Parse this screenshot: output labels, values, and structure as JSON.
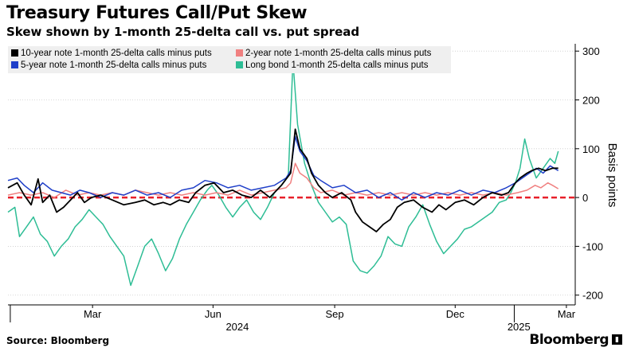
{
  "title": "Treasury Futures Call/Put Skew",
  "subtitle": "Skew shown by 1-month 25-delta call vs. put spread",
  "source": "Source: Bloomberg",
  "brand": "Bloomberg",
  "brand_icon": "bloomberg-terminal-icon",
  "colors": {
    "ten_year": "#000000",
    "two_year": "#f08080",
    "five_year": "#1f3fc9",
    "long_bond": "#2ebd95",
    "zero_line": "#e8202a",
    "grid": "#cccccc"
  },
  "chart_data": {
    "type": "line",
    "title": "Treasury Futures Call/Put Skew",
    "subtitle": "Skew shown by 1-month 25-delta call vs. put spread",
    "xlabel": "",
    "ylabel": "Basis points",
    "ylim": [
      -220,
      315
    ],
    "yticks": [
      300,
      200,
      100,
      0,
      -100,
      -200
    ],
    "xlim": [
      0,
      480
    ],
    "x_unit": "trading day index (Feb 2024 – Mar 2025)",
    "month_ticks": [
      {
        "x": 73,
        "label": "Mar"
      },
      {
        "x": 177,
        "label": "Jun"
      },
      {
        "x": 282,
        "label": "Sep"
      },
      {
        "x": 386,
        "label": "Dec"
      },
      {
        "x": 482,
        "label": "Mar"
      }
    ],
    "year_labels": [
      {
        "x": 198,
        "label": "2024"
      },
      {
        "x": 441,
        "label": "2025"
      }
    ],
    "year_separators": [
      2,
      437
    ],
    "zero_line": 0,
    "legend_position": "top-left",
    "series": [
      {
        "name": "10-year note 1-month 25-delta calls minus puts",
        "color_key": "ten_year",
        "points": [
          [
            0,
            20
          ],
          [
            8,
            30
          ],
          [
            14,
            5
          ],
          [
            20,
            -15
          ],
          [
            26,
            38
          ],
          [
            30,
            -10
          ],
          [
            36,
            5
          ],
          [
            42,
            -30
          ],
          [
            48,
            -20
          ],
          [
            54,
            -5
          ],
          [
            60,
            10
          ],
          [
            66,
            -10
          ],
          [
            72,
            0
          ],
          [
            80,
            5
          ],
          [
            90,
            -5
          ],
          [
            100,
            -15
          ],
          [
            110,
            -10
          ],
          [
            118,
            -5
          ],
          [
            126,
            -15
          ],
          [
            134,
            -10
          ],
          [
            140,
            -15
          ],
          [
            148,
            -5
          ],
          [
            156,
            -10
          ],
          [
            162,
            10
          ],
          [
            170,
            25
          ],
          [
            178,
            30
          ],
          [
            186,
            10
          ],
          [
            194,
            15
          ],
          [
            202,
            5
          ],
          [
            210,
            0
          ],
          [
            218,
            15
          ],
          [
            226,
            0
          ],
          [
            236,
            25
          ],
          [
            244,
            50
          ],
          [
            248,
            140
          ],
          [
            252,
            100
          ],
          [
            258,
            80
          ],
          [
            262,
            50
          ],
          [
            268,
            25
          ],
          [
            274,
            10
          ],
          [
            280,
            0
          ],
          [
            288,
            10
          ],
          [
            296,
            -5
          ],
          [
            300,
            -30
          ],
          [
            306,
            -50
          ],
          [
            312,
            -60
          ],
          [
            318,
            -70
          ],
          [
            324,
            -55
          ],
          [
            330,
            -45
          ],
          [
            336,
            -20
          ],
          [
            342,
            -10
          ],
          [
            350,
            -5
          ],
          [
            358,
            -20
          ],
          [
            366,
            -30
          ],
          [
            372,
            -15
          ],
          [
            378,
            -25
          ],
          [
            386,
            -10
          ],
          [
            394,
            -5
          ],
          [
            402,
            -15
          ],
          [
            410,
            0
          ],
          [
            418,
            10
          ],
          [
            426,
            5
          ],
          [
            432,
            10
          ],
          [
            438,
            30
          ],
          [
            442,
            40
          ],
          [
            448,
            50
          ],
          [
            452,
            55
          ],
          [
            458,
            60
          ],
          [
            464,
            55
          ],
          [
            470,
            60
          ],
          [
            475,
            60
          ]
        ]
      },
      {
        "name": "2-year note 1-month 25-delta calls minus puts",
        "color_key": "two_year",
        "points": [
          [
            0,
            5
          ],
          [
            10,
            10
          ],
          [
            20,
            5
          ],
          [
            30,
            10
          ],
          [
            40,
            0
          ],
          [
            50,
            15
          ],
          [
            60,
            5
          ],
          [
            70,
            10
          ],
          [
            80,
            5
          ],
          [
            90,
            10
          ],
          [
            100,
            5
          ],
          [
            110,
            15
          ],
          [
            120,
            10
          ],
          [
            130,
            5
          ],
          [
            140,
            10
          ],
          [
            150,
            5
          ],
          [
            160,
            10
          ],
          [
            170,
            5
          ],
          [
            180,
            10
          ],
          [
            190,
            5
          ],
          [
            200,
            15
          ],
          [
            210,
            5
          ],
          [
            220,
            10
          ],
          [
            230,
            15
          ],
          [
            240,
            20
          ],
          [
            244,
            30
          ],
          [
            248,
            70
          ],
          [
            252,
            50
          ],
          [
            258,
            40
          ],
          [
            264,
            20
          ],
          [
            270,
            10
          ],
          [
            280,
            15
          ],
          [
            290,
            5
          ],
          [
            300,
            10
          ],
          [
            310,
            5
          ],
          [
            320,
            10
          ],
          [
            330,
            5
          ],
          [
            340,
            10
          ],
          [
            350,
            5
          ],
          [
            360,
            10
          ],
          [
            370,
            5
          ],
          [
            380,
            10
          ],
          [
            390,
            5
          ],
          [
            400,
            10
          ],
          [
            410,
            5
          ],
          [
            420,
            10
          ],
          [
            430,
            5
          ],
          [
            440,
            10
          ],
          [
            448,
            15
          ],
          [
            455,
            25
          ],
          [
            460,
            20
          ],
          [
            466,
            30
          ],
          [
            470,
            25
          ],
          [
            475,
            18
          ]
        ]
      },
      {
        "name": "5-year note 1-month 25-delta calls minus puts",
        "color_key": "five_year",
        "points": [
          [
            0,
            35
          ],
          [
            8,
            40
          ],
          [
            14,
            25
          ],
          [
            22,
            10
          ],
          [
            30,
            30
          ],
          [
            38,
            15
          ],
          [
            46,
            10
          ],
          [
            54,
            5
          ],
          [
            62,
            15
          ],
          [
            70,
            10
          ],
          [
            80,
            0
          ],
          [
            90,
            10
          ],
          [
            100,
            5
          ],
          [
            110,
            15
          ],
          [
            120,
            5
          ],
          [
            130,
            10
          ],
          [
            140,
            0
          ],
          [
            150,
            15
          ],
          [
            160,
            20
          ],
          [
            170,
            35
          ],
          [
            180,
            30
          ],
          [
            190,
            20
          ],
          [
            200,
            25
          ],
          [
            210,
            15
          ],
          [
            220,
            20
          ],
          [
            230,
            25
          ],
          [
            240,
            40
          ],
          [
            244,
            55
          ],
          [
            248,
            125
          ],
          [
            252,
            95
          ],
          [
            258,
            75
          ],
          [
            264,
            45
          ],
          [
            270,
            35
          ],
          [
            280,
            20
          ],
          [
            290,
            25
          ],
          [
            300,
            10
          ],
          [
            310,
            15
          ],
          [
            320,
            0
          ],
          [
            330,
            10
          ],
          [
            340,
            -5
          ],
          [
            350,
            10
          ],
          [
            360,
            0
          ],
          [
            370,
            10
          ],
          [
            380,
            5
          ],
          [
            390,
            15
          ],
          [
            400,
            5
          ],
          [
            410,
            15
          ],
          [
            420,
            10
          ],
          [
            430,
            20
          ],
          [
            438,
            30
          ],
          [
            444,
            40
          ],
          [
            450,
            50
          ],
          [
            456,
            60
          ],
          [
            462,
            50
          ],
          [
            468,
            65
          ],
          [
            475,
            55
          ]
        ]
      },
      {
        "name": "Long bond 1-month 25-delta calls minus puts",
        "color_key": "long_bond",
        "points": [
          [
            0,
            -30
          ],
          [
            6,
            -20
          ],
          [
            10,
            -80
          ],
          [
            16,
            -60
          ],
          [
            22,
            -40
          ],
          [
            28,
            -75
          ],
          [
            34,
            -90
          ],
          [
            40,
            -120
          ],
          [
            46,
            -100
          ],
          [
            52,
            -85
          ],
          [
            58,
            -60
          ],
          [
            64,
            -45
          ],
          [
            70,
            -25
          ],
          [
            76,
            -40
          ],
          [
            82,
            -55
          ],
          [
            88,
            -80
          ],
          [
            94,
            -100
          ],
          [
            100,
            -120
          ],
          [
            106,
            -180
          ],
          [
            112,
            -140
          ],
          [
            118,
            -100
          ],
          [
            124,
            -85
          ],
          [
            130,
            -115
          ],
          [
            136,
            -150
          ],
          [
            142,
            -125
          ],
          [
            148,
            -85
          ],
          [
            154,
            -55
          ],
          [
            160,
            -30
          ],
          [
            166,
            -5
          ],
          [
            172,
            15
          ],
          [
            176,
            25
          ],
          [
            182,
            5
          ],
          [
            188,
            -20
          ],
          [
            194,
            -40
          ],
          [
            200,
            -20
          ],
          [
            206,
            -5
          ],
          [
            212,
            -30
          ],
          [
            218,
            -45
          ],
          [
            224,
            -20
          ],
          [
            230,
            10
          ],
          [
            236,
            25
          ],
          [
            242,
            45
          ],
          [
            246,
            280
          ],
          [
            250,
            150
          ],
          [
            256,
            70
          ],
          [
            262,
            25
          ],
          [
            268,
            -10
          ],
          [
            274,
            -30
          ],
          [
            280,
            -50
          ],
          [
            286,
            -40
          ],
          [
            292,
            -55
          ],
          [
            298,
            -130
          ],
          [
            304,
            -150
          ],
          [
            310,
            -155
          ],
          [
            316,
            -140
          ],
          [
            322,
            -120
          ],
          [
            328,
            -80
          ],
          [
            334,
            -95
          ],
          [
            340,
            -100
          ],
          [
            346,
            -60
          ],
          [
            352,
            -40
          ],
          [
            358,
            -15
          ],
          [
            364,
            -55
          ],
          [
            370,
            -90
          ],
          [
            376,
            -115
          ],
          [
            382,
            -100
          ],
          [
            388,
            -85
          ],
          [
            394,
            -65
          ],
          [
            400,
            -60
          ],
          [
            406,
            -50
          ],
          [
            412,
            -40
          ],
          [
            418,
            -30
          ],
          [
            424,
            -10
          ],
          [
            430,
            -5
          ],
          [
            434,
            10
          ],
          [
            438,
            30
          ],
          [
            442,
            60
          ],
          [
            446,
            120
          ],
          [
            450,
            80
          ],
          [
            456,
            40
          ],
          [
            462,
            60
          ],
          [
            468,
            80
          ],
          [
            472,
            70
          ],
          [
            475,
            95
          ]
        ]
      }
    ]
  }
}
